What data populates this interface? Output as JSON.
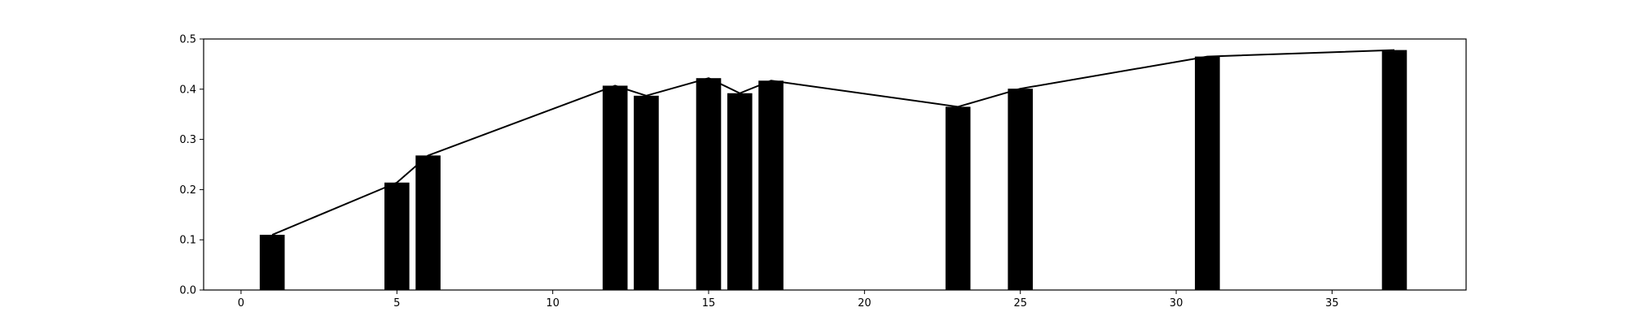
{
  "chart_data": {
    "type": "bar",
    "title": "",
    "xlabel": "",
    "ylabel": "",
    "xlim": [
      -1.2,
      39.3
    ],
    "ylim": [
      0.0,
      0.5
    ],
    "x_ticks": [
      0,
      5,
      10,
      15,
      20,
      25,
      30,
      35
    ],
    "y_ticks": [
      0.0,
      0.1,
      0.2,
      0.3,
      0.4,
      0.5
    ],
    "x_tick_labels": [
      "0",
      "5",
      "10",
      "15",
      "20",
      "25",
      "30",
      "35"
    ],
    "y_tick_labels": [
      "0.0",
      "0.1",
      "0.2",
      "0.3",
      "0.4",
      "0.5"
    ],
    "grid": false,
    "bar_width": 0.8,
    "colors": {
      "bars": "#000000",
      "line": "#000000",
      "axes": "#000000",
      "background": "#ffffff"
    },
    "series": [
      {
        "type": "bar",
        "x": [
          1,
          5,
          6,
          12,
          13,
          15,
          16,
          17,
          23,
          25,
          31,
          37
        ],
        "values": [
          0.11,
          0.214,
          0.268,
          0.407,
          0.387,
          0.422,
          0.392,
          0.417,
          0.365,
          0.401,
          0.465,
          0.478
        ]
      },
      {
        "type": "line",
        "x": [
          1,
          5,
          6,
          12,
          13,
          15,
          16,
          17,
          23,
          25,
          31,
          37
        ],
        "values": [
          0.11,
          0.214,
          0.268,
          0.407,
          0.387,
          0.422,
          0.392,
          0.417,
          0.365,
          0.401,
          0.465,
          0.478
        ]
      }
    ]
  }
}
